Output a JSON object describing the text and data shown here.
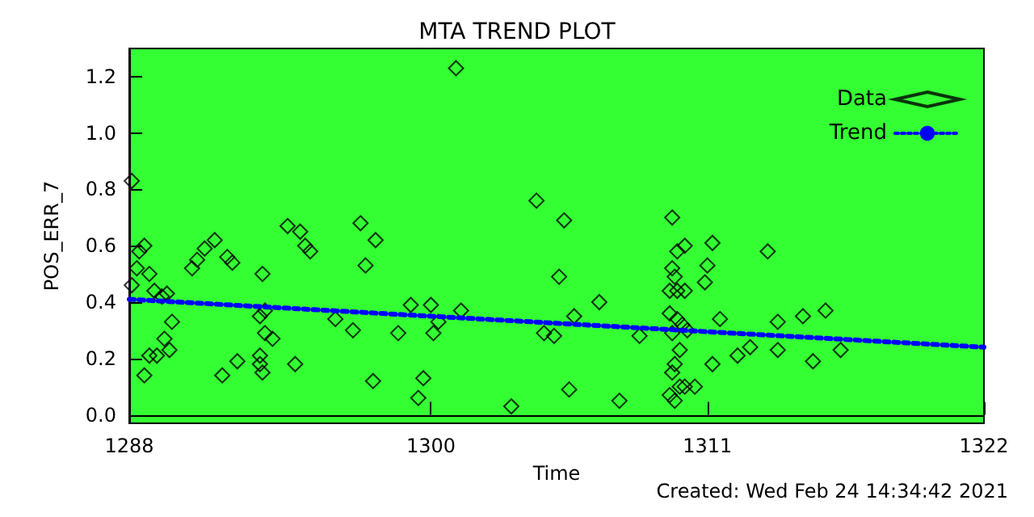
{
  "chart_data": {
    "type": "scatter",
    "title": "MTA TREND PLOT",
    "xlabel": "Time",
    "ylabel": "POS_ERR_7",
    "annotations": [
      "Created: Wed Feb 24 14:34:42 2021"
    ],
    "xlim": [
      1288,
      1322
    ],
    "xticks": [
      1288,
      1300,
      1311,
      1322
    ],
    "ylim": [
      -0.03,
      1.3
    ],
    "yticks": [
      {
        "value": 0,
        "label": "0.0"
      },
      0.2,
      0.4,
      0.6,
      0.8,
      {
        "value": 1,
        "label": "1.0"
      },
      1.2
    ],
    "legend": "top right",
    "marker": "diamond",
    "series": [
      {
        "name": "Data",
        "color": "#000000",
        "x": [
          1288.1,
          1288.6,
          1288.4,
          1288.3,
          1288.8,
          1288.1,
          1289.0,
          1289.5,
          1289.3,
          1289.7,
          1289.4,
          1289.6,
          1288.8,
          1289.1,
          1288.6,
          1290.5,
          1290.7,
          1291.0,
          1291.4,
          1291.9,
          1292.1,
          1291.7,
          1292.3,
          1293.3,
          1293.2,
          1293.4,
          1293.4,
          1293.7,
          1293.2,
          1293.2,
          1293.3,
          1294.3,
          1294.8,
          1295.0,
          1295.2,
          1294.6,
          1296.2,
          1296.9,
          1297.2,
          1297.8,
          1297.4,
          1297.7,
          1298.7,
          1299.2,
          1299.7,
          1299.5,
          1301.0,
          1300.0,
          1300.3,
          1300.1,
          1301.2,
          1303.2,
          1304.2,
          1305.3,
          1305.1,
          1305.7,
          1304.5,
          1304.9,
          1305.5,
          1306.7,
          1307.5,
          1308.3,
          1309.6,
          1309.8,
          1310.1,
          1309.6,
          1309.7,
          1309.5,
          1309.8,
          1310.1,
          1309.5,
          1309.8,
          1310.0,
          1310.2,
          1309.6,
          1309.9,
          1309.7,
          1309.6,
          1309.9,
          1310.1,
          1310.5,
          1309.5,
          1309.7,
          1311.2,
          1311.0,
          1310.9,
          1311.2,
          1311.5,
          1313.4,
          1312.2,
          1312.7,
          1313.8,
          1313.8,
          1314.8,
          1315.7,
          1315.2,
          1316.3
        ],
        "values": [
          0.83,
          0.6,
          0.58,
          0.52,
          0.5,
          0.46,
          0.44,
          0.43,
          0.42,
          0.33,
          0.27,
          0.23,
          0.21,
          0.21,
          0.14,
          0.52,
          0.55,
          0.59,
          0.62,
          0.56,
          0.54,
          0.14,
          0.19,
          0.5,
          0.35,
          0.37,
          0.29,
          0.27,
          0.21,
          0.18,
          0.15,
          0.67,
          0.65,
          0.6,
          0.58,
          0.18,
          0.34,
          0.3,
          0.68,
          0.62,
          0.53,
          0.12,
          0.29,
          0.39,
          0.13,
          0.06,
          1.23,
          0.39,
          0.33,
          0.29,
          0.37,
          0.03,
          0.76,
          0.69,
          0.49,
          0.35,
          0.29,
          0.28,
          0.09,
          0.4,
          0.05,
          0.28,
          0.7,
          0.58,
          0.6,
          0.52,
          0.49,
          0.44,
          0.44,
          0.44,
          0.36,
          0.34,
          0.32,
          0.3,
          0.29,
          0.23,
          0.18,
          0.15,
          0.1,
          0.1,
          0.1,
          0.07,
          0.05,
          0.61,
          0.53,
          0.47,
          0.18,
          0.34,
          0.58,
          0.21,
          0.24,
          0.33,
          0.23,
          0.35,
          0.37,
          0.19,
          0.23
        ]
      },
      {
        "name": "Trend",
        "type": "line",
        "color": "#0000ff",
        "marker": "none",
        "line_style": "dotted",
        "x": [
          1288,
          1322
        ],
        "values": [
          0.41,
          0.24
        ]
      }
    ]
  }
}
